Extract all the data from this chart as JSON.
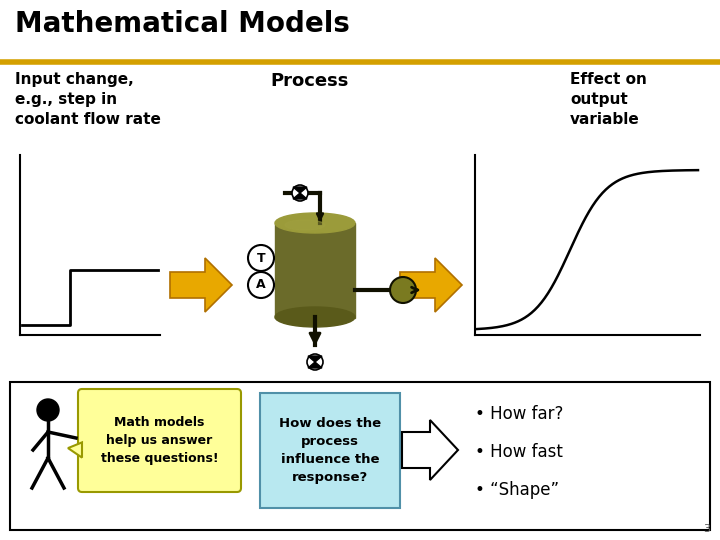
{
  "title": "Mathematical Models",
  "title_color": "#000000",
  "gold_line_color": "#D4A000",
  "bg_color": "#ffffff",
  "input_label": "Input change,\ne.g., step in\ncoolant flow rate",
  "process_label": "Process",
  "effect_label": "Effect on\noutput\nvariable",
  "arrow_color": "#E8A800",
  "reactor_body_color": "#6B6B2A",
  "reactor_top_color": "#9B9B3A",
  "reactor_highlight_color": "#A0A040",
  "bullet_items": [
    "• How far?",
    "• How fast",
    "• “Shape”"
  ],
  "question_box_text": "How does the\nprocess\ninfluence the\nresponse?",
  "question_box_bg": "#B8E8F0",
  "speech_bubble_text": "Math models\nhelp us answer\nthese questions!",
  "speech_bubble_bg": "#FFFF99",
  "page_number": "3",
  "bottom_box_border": "#000000"
}
